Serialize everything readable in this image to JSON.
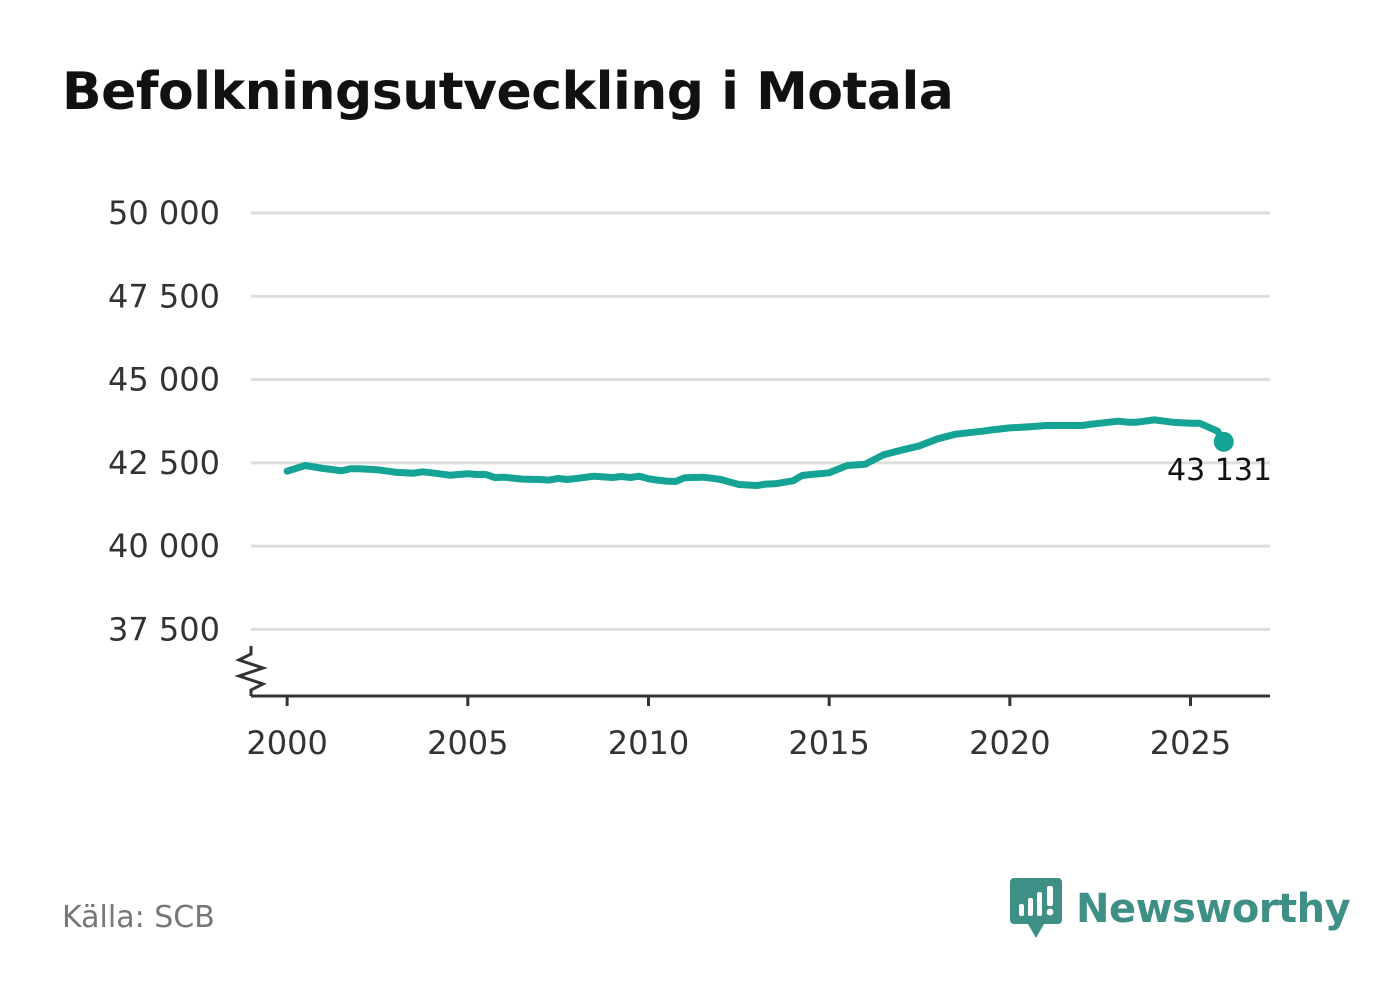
{
  "title": "Befolkningsutveckling i Motala",
  "source": "Källa: SCB",
  "brand": {
    "name": "Newsworthy",
    "logo_icon": "newsworthy-logo-icon",
    "color": "#3e8f86"
  },
  "chart_data": {
    "type": "line",
    "title": "Befolkningsutveckling i Motala",
    "xlabel": "",
    "ylabel": "",
    "xlim": [
      1999,
      2027.2
    ],
    "ylim": [
      35500,
      50000
    ],
    "y_ticks": [
      37500,
      40000,
      42500,
      45000,
      47500,
      50000
    ],
    "y_tick_labels": [
      "37 500",
      "40 000",
      "42 500",
      "45 000",
      "47 500",
      "50 000"
    ],
    "x_ticks": [
      2000,
      2005,
      2010,
      2015,
      2020,
      2025
    ],
    "x_tick_labels": [
      "2000",
      "2005",
      "2010",
      "2015",
      "2020",
      "2025"
    ],
    "grid": true,
    "axis_break": true,
    "line_color": "#14a394",
    "series": [
      {
        "name": "Befolkning",
        "x": [
          2000.0,
          2000.5,
          2001.0,
          2001.25,
          2001.5,
          2001.75,
          2002.0,
          2002.5,
          2003.0,
          2003.25,
          2003.5,
          2003.75,
          2004.0,
          2004.5,
          2005.0,
          2005.25,
          2005.5,
          2005.75,
          2006.0,
          2006.5,
          2007.0,
          2007.25,
          2007.5,
          2007.75,
          2008.0,
          2008.5,
          2009.0,
          2009.25,
          2009.5,
          2009.75,
          2010.0,
          2010.25,
          2010.5,
          2010.75,
          2011.0,
          2011.5,
          2011.75,
          2012.0,
          2012.5,
          2013.0,
          2013.25,
          2013.5,
          2014.0,
          2014.25,
          2014.5,
          2015.0,
          2015.5,
          2016.0,
          2016.5,
          2017.0,
          2017.5,
          2018.0,
          2018.5,
          2019.0,
          2019.25,
          2019.5,
          2020.0,
          2020.5,
          2021.0,
          2021.5,
          2022.0,
          2022.25,
          2022.5,
          2023.0,
          2023.25,
          2023.5,
          2024.0,
          2024.5,
          2025.0,
          2025.25,
          2025.5,
          2025.75,
          2025.92
        ],
        "values": [
          42250,
          42420,
          42330,
          42300,
          42260,
          42320,
          42320,
          42290,
          42220,
          42200,
          42190,
          42230,
          42200,
          42130,
          42170,
          42150,
          42150,
          42060,
          42070,
          42010,
          42000,
          41980,
          42030,
          42000,
          42030,
          42100,
          42060,
          42090,
          42060,
          42100,
          42020,
          41980,
          41950,
          41940,
          42050,
          42070,
          42040,
          42000,
          41850,
          41820,
          41860,
          41870,
          41960,
          42120,
          42150,
          42200,
          42420,
          42460,
          42740,
          42880,
          43010,
          43220,
          43360,
          43420,
          43450,
          43490,
          43550,
          43580,
          43620,
          43620,
          43620,
          43660,
          43690,
          43750,
          43720,
          43720,
          43790,
          43720,
          43690,
          43690,
          43570,
          43450,
          43131
        ],
        "last_value_label": "43 131"
      }
    ]
  }
}
